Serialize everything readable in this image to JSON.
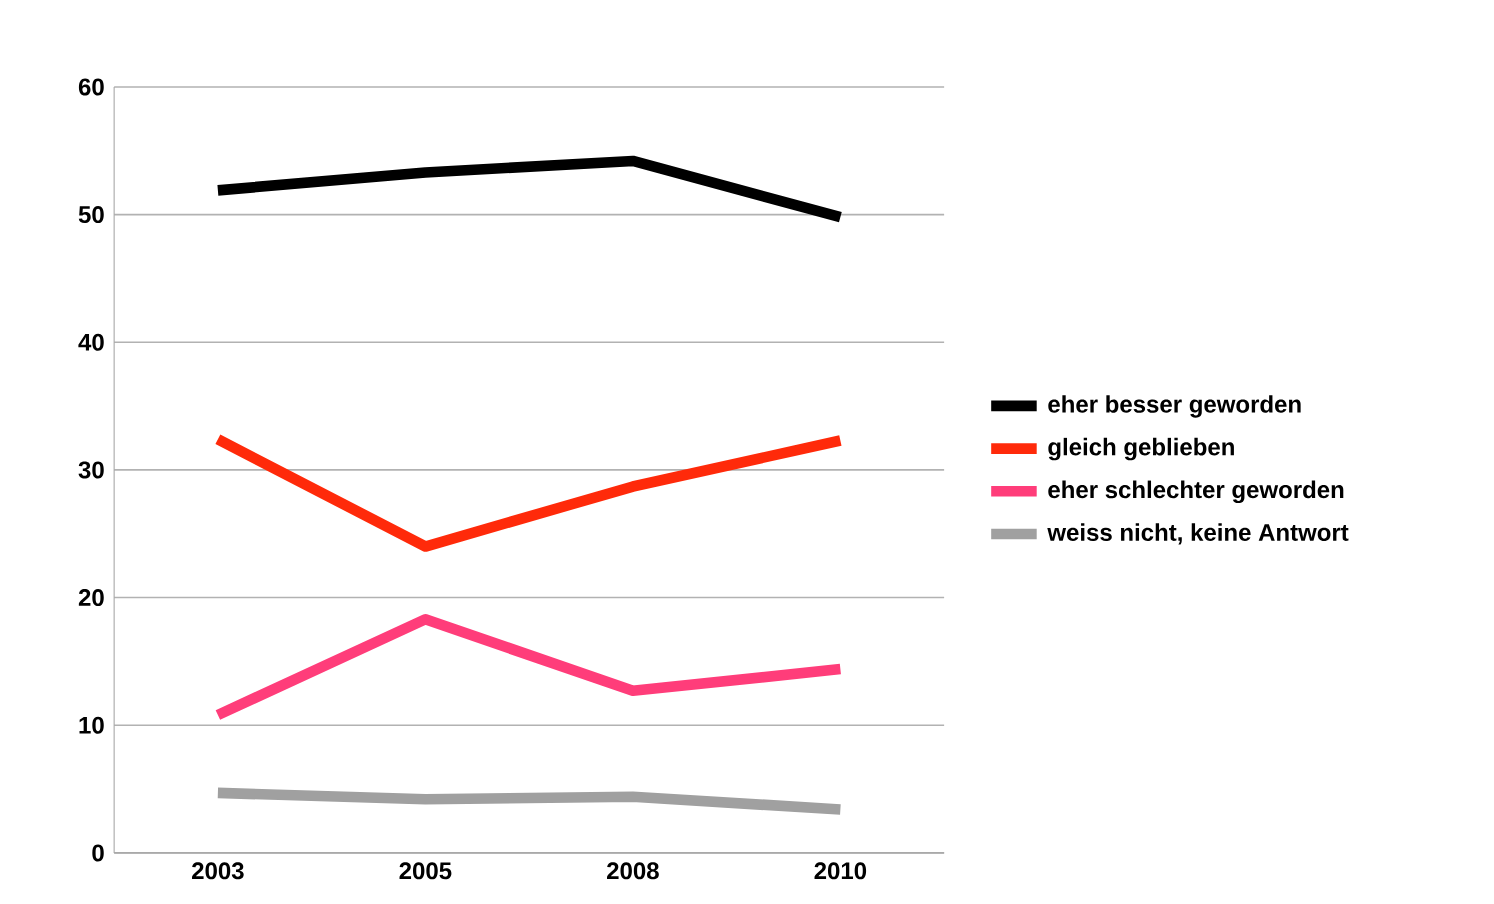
{
  "chart_data": {
    "type": "line",
    "categories": [
      "2003",
      "2005",
      "2008",
      "2010"
    ],
    "series": [
      {
        "name": "eher besser geworden",
        "color": "#000000",
        "values": [
          51.9,
          53.3,
          54.2,
          49.8
        ]
      },
      {
        "name": "gleich geblieben",
        "color": "#ff2a0a",
        "values": [
          32.4,
          24.0,
          28.7,
          32.3
        ]
      },
      {
        "name": "eher schlechter geworden",
        "color": "#ff3d7a",
        "values": [
          10.8,
          18.3,
          12.7,
          14.4
        ]
      },
      {
        "name": "weiss nicht, keine Antwort",
        "color": "#a0a0a0",
        "values": [
          4.7,
          4.2,
          4.4,
          3.4
        ]
      }
    ],
    "ylim": [
      0,
      60
    ],
    "yticks": [
      0,
      10,
      20,
      30,
      40,
      50,
      60
    ],
    "grid": "y",
    "legend": "right",
    "marker": "none",
    "line_style": "solid"
  }
}
